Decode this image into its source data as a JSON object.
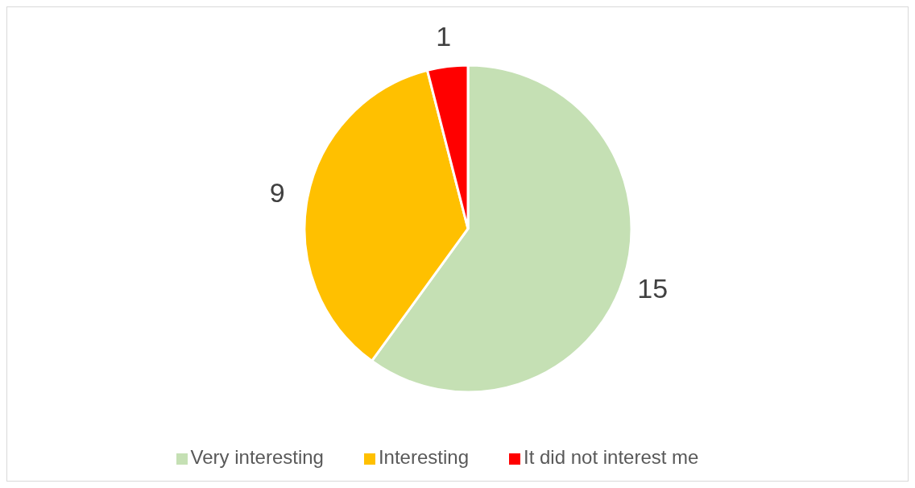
{
  "chart_data": {
    "type": "pie",
    "categories": [
      "Very interesting",
      "Interesting",
      "It did not interest me"
    ],
    "values": [
      15,
      9,
      1
    ],
    "colors": [
      "#c5e0b4",
      "#ffc000",
      "#ff0000"
    ],
    "data_labels": true,
    "legend": "bottom"
  }
}
